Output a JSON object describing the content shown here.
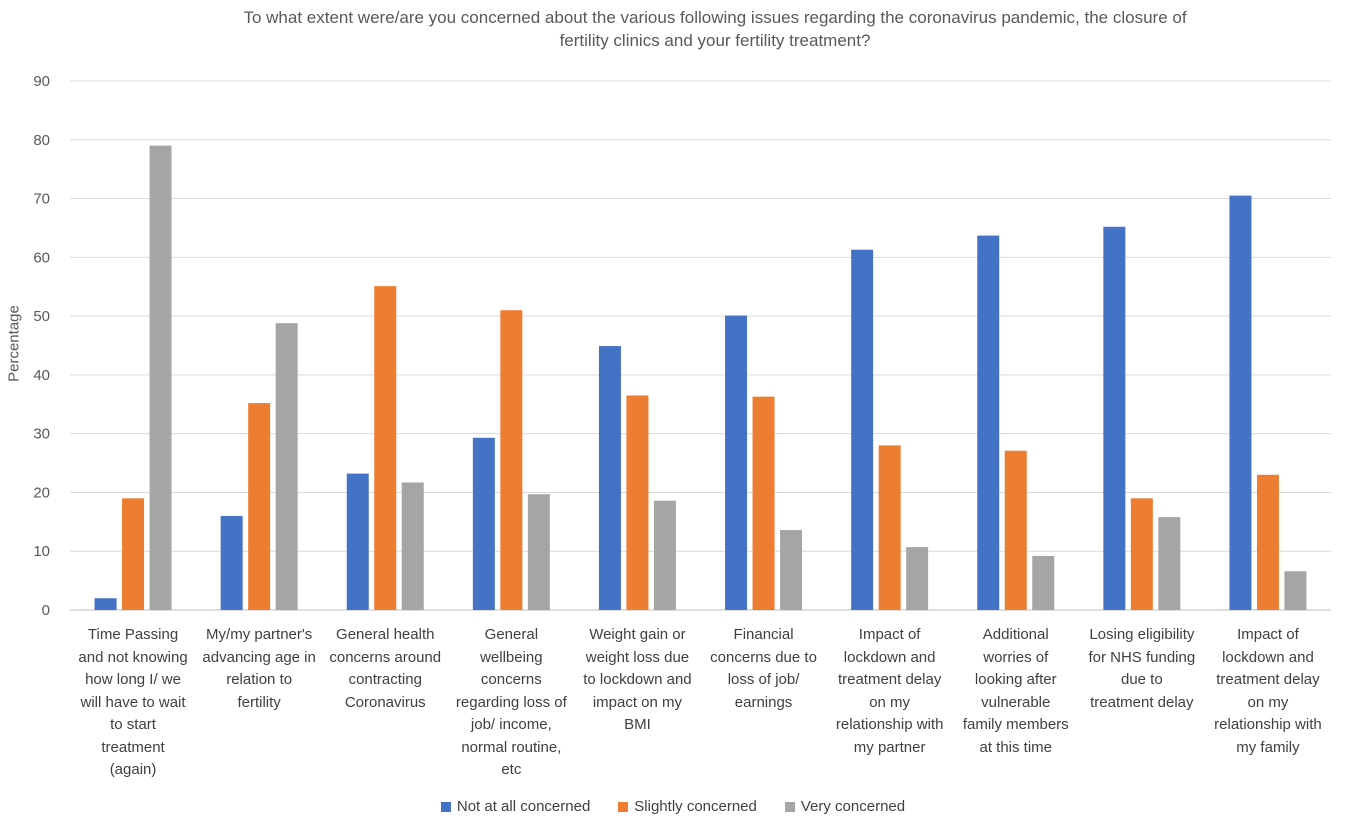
{
  "chart_data": {
    "type": "bar",
    "title": "To what extent were/are you concerned about the various following issues regarding the coronavirus pandemic, the closure of fertility clinics and your fertility treatment?",
    "title_lines": [
      "To what extent were/are you concerned about the various following issues regarding the coronavirus pandemic, the closure of",
      "fertility clinics and your fertility treatment?"
    ],
    "ylabel": "Percentage",
    "xlabel": "",
    "ylim": [
      0,
      90
    ],
    "yticks": [
      0,
      10,
      20,
      30,
      40,
      50,
      60,
      70,
      80,
      90
    ],
    "grid": true,
    "legend_position": "bottom",
    "categories": [
      [
        "Time Passing",
        "and not knowing",
        "how long I/ we",
        "will have to wait",
        "to start",
        "treatment",
        "(again)"
      ],
      [
        "My/my partner's",
        "advancing age in",
        "relation to",
        "fertility"
      ],
      [
        "General health",
        "concerns around",
        "contracting",
        "Coronavirus"
      ],
      [
        "General",
        "wellbeing",
        "concerns",
        "regarding loss of",
        "job/ income,",
        "normal routine,",
        "etc"
      ],
      [
        "Weight gain or",
        "weight loss due",
        "to lockdown and",
        "impact on my",
        "BMI"
      ],
      [
        "Financial",
        "concerns due to",
        "loss of job/",
        "earnings"
      ],
      [
        "Impact of",
        "lockdown and",
        "treatment delay",
        "on my",
        "relationship with",
        "my partner"
      ],
      [
        "Additional",
        "worries of",
        "looking after",
        "vulnerable",
        "family members",
        "at this time"
      ],
      [
        "Losing eligibility",
        "for NHS funding",
        "due to",
        "treatment delay"
      ],
      [
        "Impact of",
        "lockdown and",
        "treatment delay",
        "on my",
        "relationship with",
        "my family"
      ]
    ],
    "series": [
      {
        "name": "Not at all concerned",
        "color": "#4472c4",
        "values": [
          2,
          16,
          23.2,
          29.3,
          44.9,
          50.1,
          61.3,
          63.7,
          65.2,
          70.5
        ]
      },
      {
        "name": "Slightly concerned",
        "color": "#ed7d31",
        "values": [
          19,
          35.2,
          55.1,
          51,
          36.5,
          36.3,
          28,
          27.1,
          19,
          23
        ]
      },
      {
        "name": "Very concerned",
        "color": "#a5a5a5",
        "values": [
          79,
          48.8,
          21.7,
          19.7,
          18.6,
          13.6,
          10.7,
          9.2,
          15.8,
          6.6
        ]
      }
    ]
  }
}
